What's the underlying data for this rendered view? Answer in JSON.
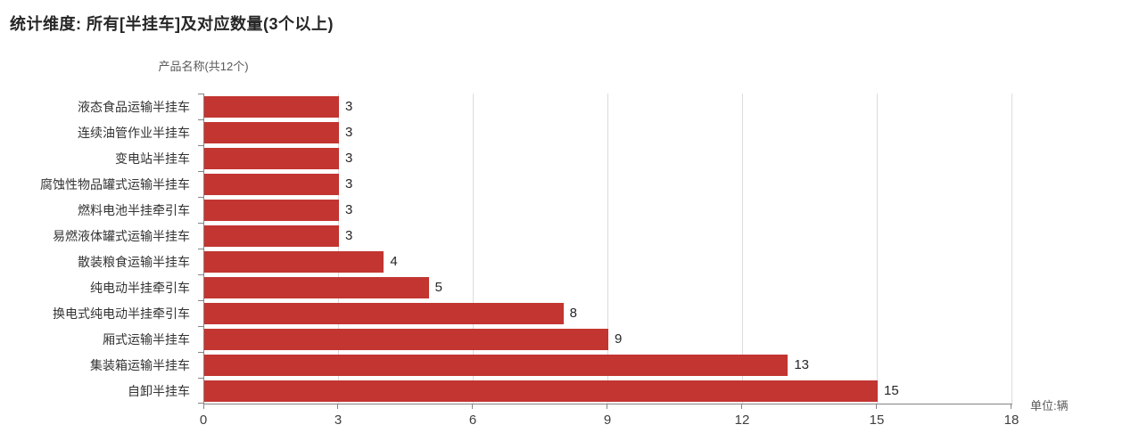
{
  "chart_data": {
    "type": "bar",
    "orientation": "horizontal",
    "title": "统计维度: 所有[半挂车]及对应数量(3个以上)",
    "y_axis_name": "产品名称(共12个)",
    "unit_label": "单位:辆",
    "categories": [
      "液态食品运输半挂车",
      "连续油管作业半挂车",
      "变电站半挂车",
      "腐蚀性物品罐式运输半挂车",
      "燃料电池半挂牵引车",
      "易燃液体罐式运输半挂车",
      "散装粮食运输半挂车",
      "纯电动半挂牵引车",
      "换电式纯电动半挂牵引车",
      "厢式运输半挂车",
      "集装箱运输半挂车",
      "自卸半挂车"
    ],
    "values": [
      3,
      3,
      3,
      3,
      3,
      3,
      4,
      5,
      8,
      9,
      13,
      15
    ],
    "x_ticks": [
      0,
      3,
      6,
      9,
      12,
      15,
      18
    ],
    "xlim": [
      0,
      18
    ],
    "grid": true,
    "legend": false,
    "value_labels_shown": true,
    "colors": {
      "bar": "#c23531",
      "gridline": "#dcdcdc",
      "axis": "#848484",
      "tick": "#848484"
    }
  }
}
